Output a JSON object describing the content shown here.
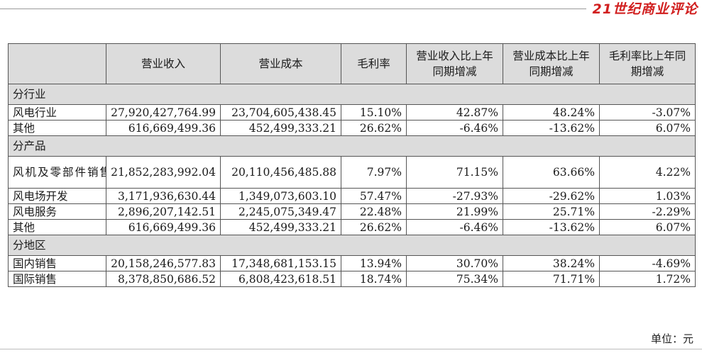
{
  "brand": {
    "logo_text": "21世纪商业评论"
  },
  "table": {
    "columns": [
      "",
      "营业收入",
      "营业成本",
      "毛利率",
      "营业收入比上年同期增减",
      "营业成本比上年同期增减",
      "毛利率比上年同期增减"
    ],
    "sections": [
      {
        "title": "分行业",
        "rows": [
          {
            "label": "风电行业",
            "revenue": "27,920,427,764.99",
            "cost": "23,704,605,438.45",
            "margin": "15.10%",
            "rev_change": "42.87%",
            "cost_change": "48.24%",
            "margin_change": "-3.07%"
          },
          {
            "label": "其他",
            "revenue": "616,669,499.36",
            "cost": "452,499,333.21",
            "margin": "26.62%",
            "rev_change": "-6.46%",
            "cost_change": "-13.62%",
            "margin_change": "6.07%"
          }
        ]
      },
      {
        "title": "分产品",
        "rows": [
          {
            "label": "风机及零部件销售",
            "revenue": "21,852,283,992.04",
            "cost": "20,110,456,485.88",
            "margin": "7.97%",
            "rev_change": "71.15%",
            "cost_change": "63.66%",
            "margin_change": "4.22%"
          },
          {
            "label": "风电场开发",
            "revenue": "3,171,936,630.44",
            "cost": "1,349,073,603.10",
            "margin": "57.47%",
            "rev_change": "-27.93%",
            "cost_change": "-29.62%",
            "margin_change": "1.03%"
          },
          {
            "label": "风电服务",
            "revenue": "2,896,207,142.51",
            "cost": "2,245,075,349.47",
            "margin": "22.48%",
            "rev_change": "21.99%",
            "cost_change": "25.71%",
            "margin_change": "-2.29%"
          },
          {
            "label": "其他",
            "revenue": "616,669,499.36",
            "cost": "452,499,333.21",
            "margin": "26.62%",
            "rev_change": "-6.46%",
            "cost_change": "-13.62%",
            "margin_change": "6.07%"
          }
        ]
      },
      {
        "title": "分地区",
        "rows": [
          {
            "label": "国内销售",
            "revenue": "20,158,246,577.83",
            "cost": "17,348,681,153.15",
            "margin": "13.94%",
            "rev_change": "30.70%",
            "cost_change": "38.24%",
            "margin_change": "-4.69%"
          },
          {
            "label": "国际销售",
            "revenue": "8,378,850,686.52",
            "cost": "6,808,423,618.51",
            "margin": "18.74%",
            "rev_change": "75.34%",
            "cost_change": "71.71%",
            "margin_change": "1.72%"
          }
        ]
      }
    ]
  },
  "footer": {
    "unit_note": "单位：元"
  },
  "colors": {
    "brand_red": "#d11f1f",
    "header_gray": "#dcdcdc",
    "rule_gray": "#9a9a9a"
  }
}
